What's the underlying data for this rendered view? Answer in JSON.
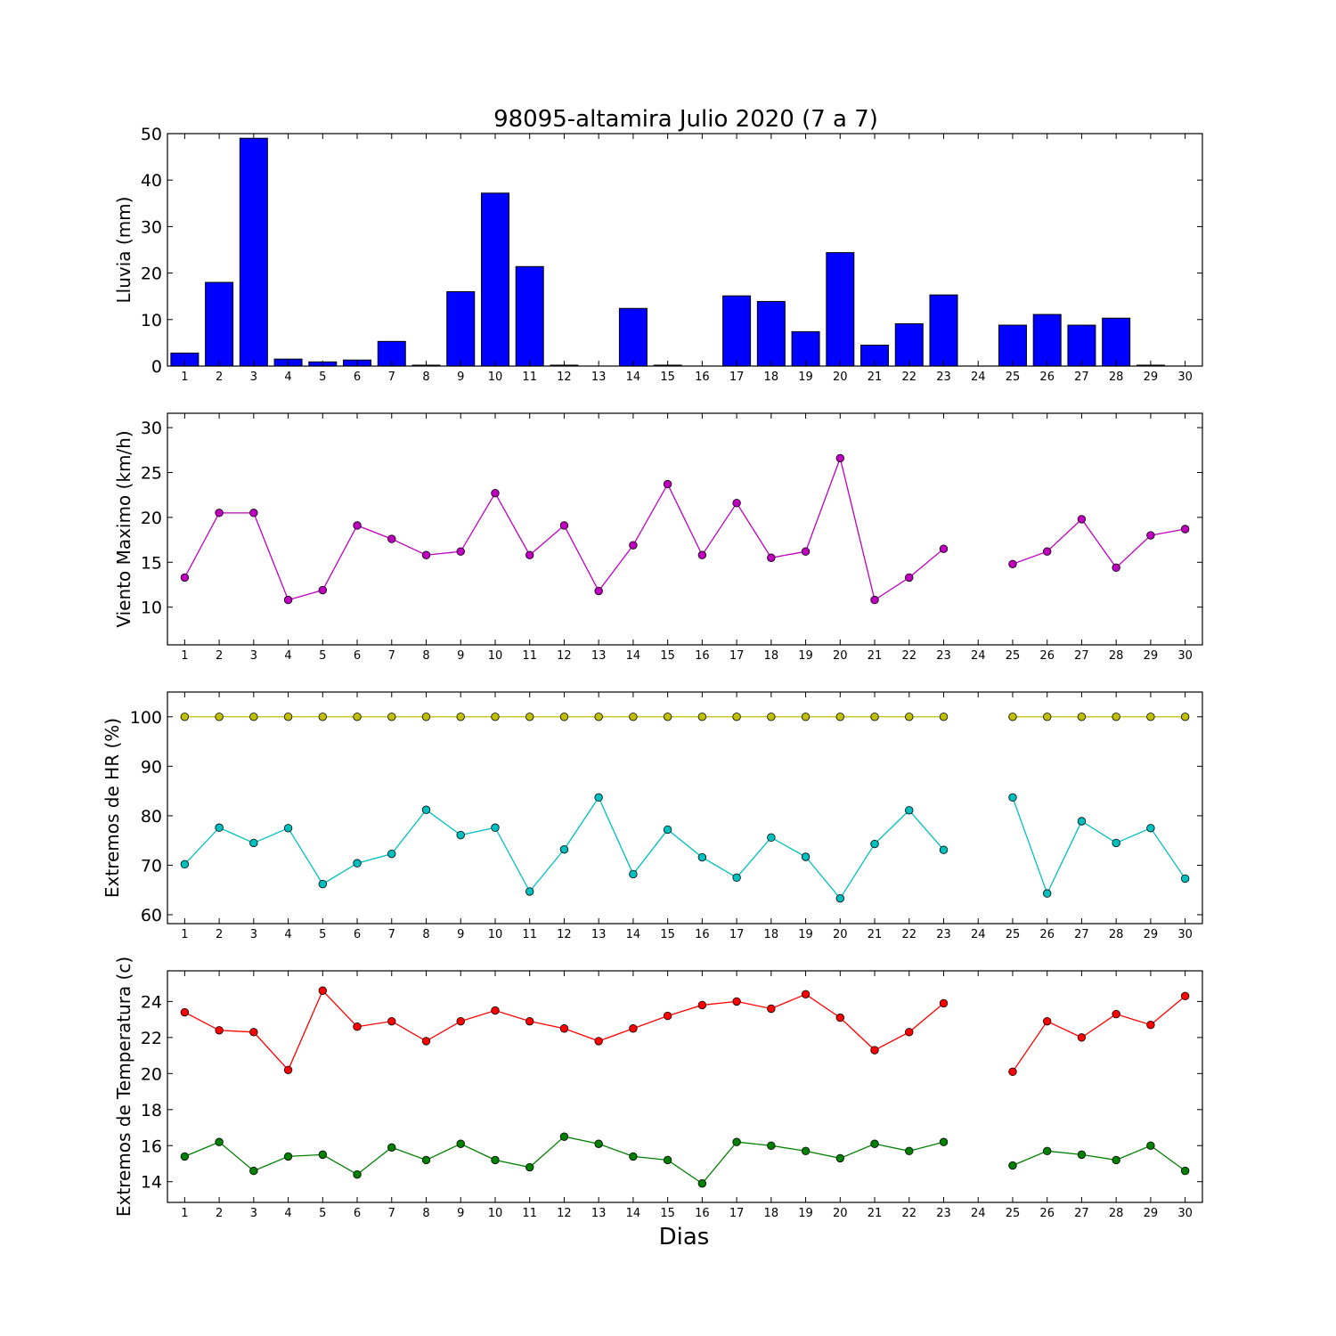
{
  "figure": {
    "title": "98095-altamira Julio 2020  (7 a 7)",
    "xlabel": "Dias"
  },
  "chart_data": [
    {
      "type": "bar",
      "ylabel": "Lluvia (mm)",
      "ylim": [
        0,
        50
      ],
      "yticks": [
        0,
        10,
        20,
        30,
        40,
        50
      ],
      "x": [
        1,
        2,
        3,
        4,
        5,
        6,
        7,
        8,
        9,
        10,
        11,
        12,
        13,
        14,
        15,
        16,
        17,
        18,
        19,
        20,
        21,
        22,
        23,
        24,
        25,
        26,
        27,
        28,
        29,
        30
      ],
      "series": [
        {
          "color": "#0000ff",
          "values": [
            2.8,
            18,
            49,
            1.5,
            0.9,
            1.3,
            5.3,
            0.2,
            16,
            37.2,
            21.4,
            0.2,
            0,
            12.4,
            0.2,
            0,
            15.1,
            13.9,
            7.4,
            24.4,
            4.5,
            9.1,
            15.3,
            0,
            8.8,
            11.1,
            8.8,
            10.3,
            0.2,
            0
          ]
        }
      ]
    },
    {
      "type": "line",
      "ylabel": "Viento Maximo (km/h)",
      "ylim": [
        5.8,
        31.6
      ],
      "yticks": [
        10,
        15,
        20,
        25,
        30
      ],
      "x": [
        1,
        2,
        3,
        4,
        5,
        6,
        7,
        8,
        9,
        10,
        11,
        12,
        13,
        14,
        15,
        16,
        17,
        18,
        19,
        20,
        21,
        22,
        23,
        24,
        25,
        26,
        27,
        28,
        29,
        30
      ],
      "series": [
        {
          "color": "#bf00bf",
          "values": [
            13.3,
            20.5,
            20.5,
            10.8,
            11.9,
            19.1,
            17.6,
            15.8,
            16.2,
            22.7,
            15.8,
            19.1,
            11.8,
            16.9,
            23.7,
            15.8,
            21.6,
            15.5,
            16.2,
            26.6,
            10.8,
            13.3,
            16.5,
            null,
            14.8,
            16.2,
            19.8,
            14.4,
            18,
            18.7
          ]
        }
      ]
    },
    {
      "type": "line",
      "ylabel": "Extremos de HR (%)",
      "ylim": [
        58.2,
        105
      ],
      "yticks": [
        60,
        70,
        80,
        90,
        100
      ],
      "x": [
        1,
        2,
        3,
        4,
        5,
        6,
        7,
        8,
        9,
        10,
        11,
        12,
        13,
        14,
        15,
        16,
        17,
        18,
        19,
        20,
        21,
        22,
        23,
        24,
        25,
        26,
        27,
        28,
        29,
        30
      ],
      "series": [
        {
          "color": "#bfbf00",
          "values": [
            100,
            100,
            100,
            100,
            100,
            100,
            100,
            100,
            100,
            100,
            100,
            100,
            100,
            100,
            100,
            100,
            100,
            100,
            100,
            100,
            100,
            100,
            100,
            null,
            100,
            100,
            100,
            100,
            100,
            100
          ]
        },
        {
          "color": "#00bfbf",
          "values": [
            70.2,
            77.6,
            74.5,
            77.5,
            66.2,
            70.4,
            72.3,
            81.2,
            76.1,
            77.6,
            64.7,
            73.2,
            83.7,
            68.2,
            77.2,
            71.6,
            67.5,
            75.6,
            71.7,
            63.3,
            74.3,
            81.1,
            73.1,
            null,
            83.7,
            64.3,
            78.9,
            74.5,
            77.5,
            67.3
          ]
        }
      ]
    },
    {
      "type": "line",
      "ylabel": "Extremos de Temperatura (c)",
      "ylim": [
        12.85,
        25.7
      ],
      "yticks": [
        14,
        16,
        18,
        20,
        22,
        24
      ],
      "x": [
        1,
        2,
        3,
        4,
        5,
        6,
        7,
        8,
        9,
        10,
        11,
        12,
        13,
        14,
        15,
        16,
        17,
        18,
        19,
        20,
        21,
        22,
        23,
        24,
        25,
        26,
        27,
        28,
        29,
        30
      ],
      "series": [
        {
          "color": "#ff0000",
          "values": [
            23.4,
            22.4,
            22.3,
            20.2,
            24.6,
            22.6,
            22.9,
            21.8,
            22.9,
            23.5,
            22.9,
            22.5,
            21.8,
            22.5,
            23.2,
            23.8,
            24,
            23.6,
            24.4,
            23.1,
            21.3,
            22.3,
            23.9,
            null,
            20.1,
            22.9,
            22,
            23.3,
            22.7,
            24.3
          ]
        },
        {
          "color": "#008000",
          "values": [
            15.4,
            16.2,
            14.6,
            15.4,
            15.5,
            14.4,
            15.9,
            15.2,
            16.1,
            15.2,
            14.8,
            16.5,
            16.1,
            15.4,
            15.2,
            13.9,
            16.2,
            16,
            15.7,
            15.3,
            16.1,
            15.7,
            16.2,
            null,
            14.9,
            15.7,
            15.5,
            15.2,
            16,
            14.6
          ]
        }
      ]
    }
  ]
}
